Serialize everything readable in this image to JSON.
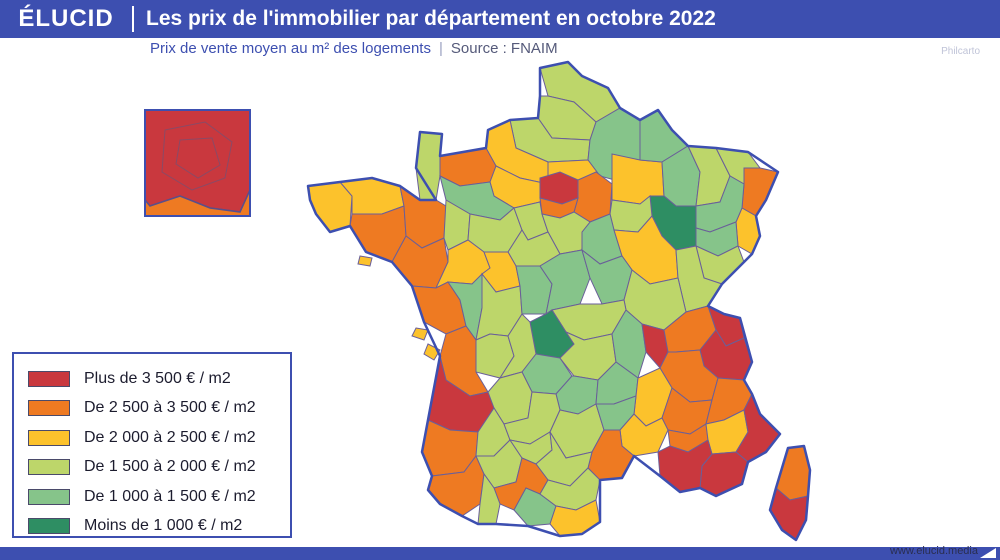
{
  "header": {
    "logo": "ÉLUCID",
    "title": "Les prix de l'immobilier par département en octobre 2022"
  },
  "subtitle": {
    "main": "Prix de vente moyen au m² des logements",
    "source": "Source : FNAIM"
  },
  "credit": "Philcarto",
  "footer": {
    "brand": "www.elucid.media"
  },
  "legend": {
    "items": [
      {
        "label": "Plus de 3 500 € / m2",
        "color": "#c9383e"
      },
      {
        "label": "De 2 500 à 3 500 € / m2",
        "color": "#ee7a22"
      },
      {
        "label": "De 2 000 à 2 500 € / m2",
        "color": "#fcc22c"
      },
      {
        "label": "De 1 500 à 2 000 € / m2",
        "color": "#bdd66a"
      },
      {
        "label": "De 1 000 à 1 500 € / m2",
        "color": "#86c48a"
      },
      {
        "label": "Moins de 1 000 € / m2",
        "color": "#2e8e63"
      }
    ]
  },
  "map": {
    "regions": [
      {
        "name": "paris-inset",
        "class": 0
      },
      {
        "name": "petite-couronne-inset",
        "class": 1
      },
      {
        "name": "nord",
        "class": 3
      },
      {
        "name": "pas-de-calais",
        "class": 3
      },
      {
        "name": "somme",
        "class": 3
      },
      {
        "name": "aisne",
        "class": 4
      },
      {
        "name": "oise",
        "class": 2
      },
      {
        "name": "seine-maritime",
        "class": 2
      },
      {
        "name": "calvados",
        "class": 1
      },
      {
        "name": "manche",
        "class": 3
      },
      {
        "name": "eure",
        "class": 2
      },
      {
        "name": "orne",
        "class": 4
      },
      {
        "name": "ile-de-france",
        "class": 0
      },
      {
        "name": "seine-et-marne",
        "class": 1
      },
      {
        "name": "yvelines-south",
        "class": 1
      },
      {
        "name": "marne",
        "class": 2
      },
      {
        "name": "ardennes",
        "class": 4
      },
      {
        "name": "meuse",
        "class": 4
      },
      {
        "name": "haute-marne",
        "class": 5
      },
      {
        "name": "meurthe-et-moselle",
        "class": 3
      },
      {
        "name": "moselle",
        "class": 3
      },
      {
        "name": "bas-rhin",
        "class": 1
      },
      {
        "name": "haut-rhin",
        "class": 2
      },
      {
        "name": "vosges",
        "class": 4
      },
      {
        "name": "haute-saone",
        "class": 4
      },
      {
        "name": "aube",
        "class": 3
      },
      {
        "name": "yonne",
        "class": 4
      },
      {
        "name": "cote-dor",
        "class": 2
      },
      {
        "name": "doubs",
        "class": 3
      },
      {
        "name": "jura",
        "class": 3
      },
      {
        "name": "finistere",
        "class": 2
      },
      {
        "name": "cotes-darmor",
        "class": 2
      },
      {
        "name": "morbihan",
        "class": 1
      },
      {
        "name": "ille-et-vilaine",
        "class": 1
      },
      {
        "name": "loire-atlantique",
        "class": 1
      },
      {
        "name": "mayenne",
        "class": 3
      },
      {
        "name": "sarthe",
        "class": 3
      },
      {
        "name": "maine-et-loire",
        "class": 2
      },
      {
        "name": "eure-et-loir",
        "class": 3
      },
      {
        "name": "loiret",
        "class": 3
      },
      {
        "name": "loir-et-cher",
        "class": 3
      },
      {
        "name": "indre-et-loire",
        "class": 2
      },
      {
        "name": "vendee",
        "class": 1
      },
      {
        "name": "deux-sevres",
        "class": 4
      },
      {
        "name": "vienne",
        "class": 3
      },
      {
        "name": "indre",
        "class": 4
      },
      {
        "name": "cher",
        "class": 4
      },
      {
        "name": "nievre",
        "class": 4
      },
      {
        "name": "saone-et-loire",
        "class": 3
      },
      {
        "name": "allier",
        "class": 3
      },
      {
        "name": "creuse",
        "class": 5
      },
      {
        "name": "charente-maritime",
        "class": 1
      },
      {
        "name": "charente",
        "class": 3
      },
      {
        "name": "haute-vienne",
        "class": 3
      },
      {
        "name": "correze",
        "class": 4
      },
      {
        "name": "puy-de-dome",
        "class": 3
      },
      {
        "name": "loire",
        "class": 4
      },
      {
        "name": "rhone",
        "class": 0
      },
      {
        "name": "ain",
        "class": 1
      },
      {
        "name": "haute-savoie",
        "class": 0
      },
      {
        "name": "savoie",
        "class": 0
      },
      {
        "name": "isere",
        "class": 1
      },
      {
        "name": "gironde",
        "class": 0
      },
      {
        "name": "dordogne",
        "class": 3
      },
      {
        "name": "cantal",
        "class": 4
      },
      {
        "name": "haute-loire",
        "class": 4
      },
      {
        "name": "ardeche",
        "class": 2
      },
      {
        "name": "drome",
        "class": 1
      },
      {
        "name": "hautes-alpes",
        "class": 1
      },
      {
        "name": "landes",
        "class": 1
      },
      {
        "name": "lot-et-garonne",
        "class": 3
      },
      {
        "name": "lot",
        "class": 3
      },
      {
        "name": "aveyron",
        "class": 3
      },
      {
        "name": "lozere",
        "class": 4
      },
      {
        "name": "gard",
        "class": 2
      },
      {
        "name": "vaucluse",
        "class": 1
      },
      {
        "name": "alpes-de-haute-provence",
        "class": 2
      },
      {
        "name": "alpes-maritimes",
        "class": 0
      },
      {
        "name": "var",
        "class": 0
      },
      {
        "name": "bouches-du-rhone",
        "class": 0
      },
      {
        "name": "herault",
        "class": 1
      },
      {
        "name": "pyrenees-atlantiques",
        "class": 1
      },
      {
        "name": "gers",
        "class": 3
      },
      {
        "name": "tarn-et-garonne",
        "class": 3
      },
      {
        "name": "tarn",
        "class": 3
      },
      {
        "name": "haute-garonne",
        "class": 1
      },
      {
        "name": "hautes-pyrenees",
        "class": 3
      },
      {
        "name": "ariege",
        "class": 4
      },
      {
        "name": "aude",
        "class": 3
      },
      {
        "name": "pyrenees-orientales",
        "class": 2
      },
      {
        "name": "haute-corse",
        "class": 1
      },
      {
        "name": "corse-du-sud",
        "class": 0
      },
      {
        "name": "morbihan-islands",
        "class": 2
      }
    ]
  }
}
